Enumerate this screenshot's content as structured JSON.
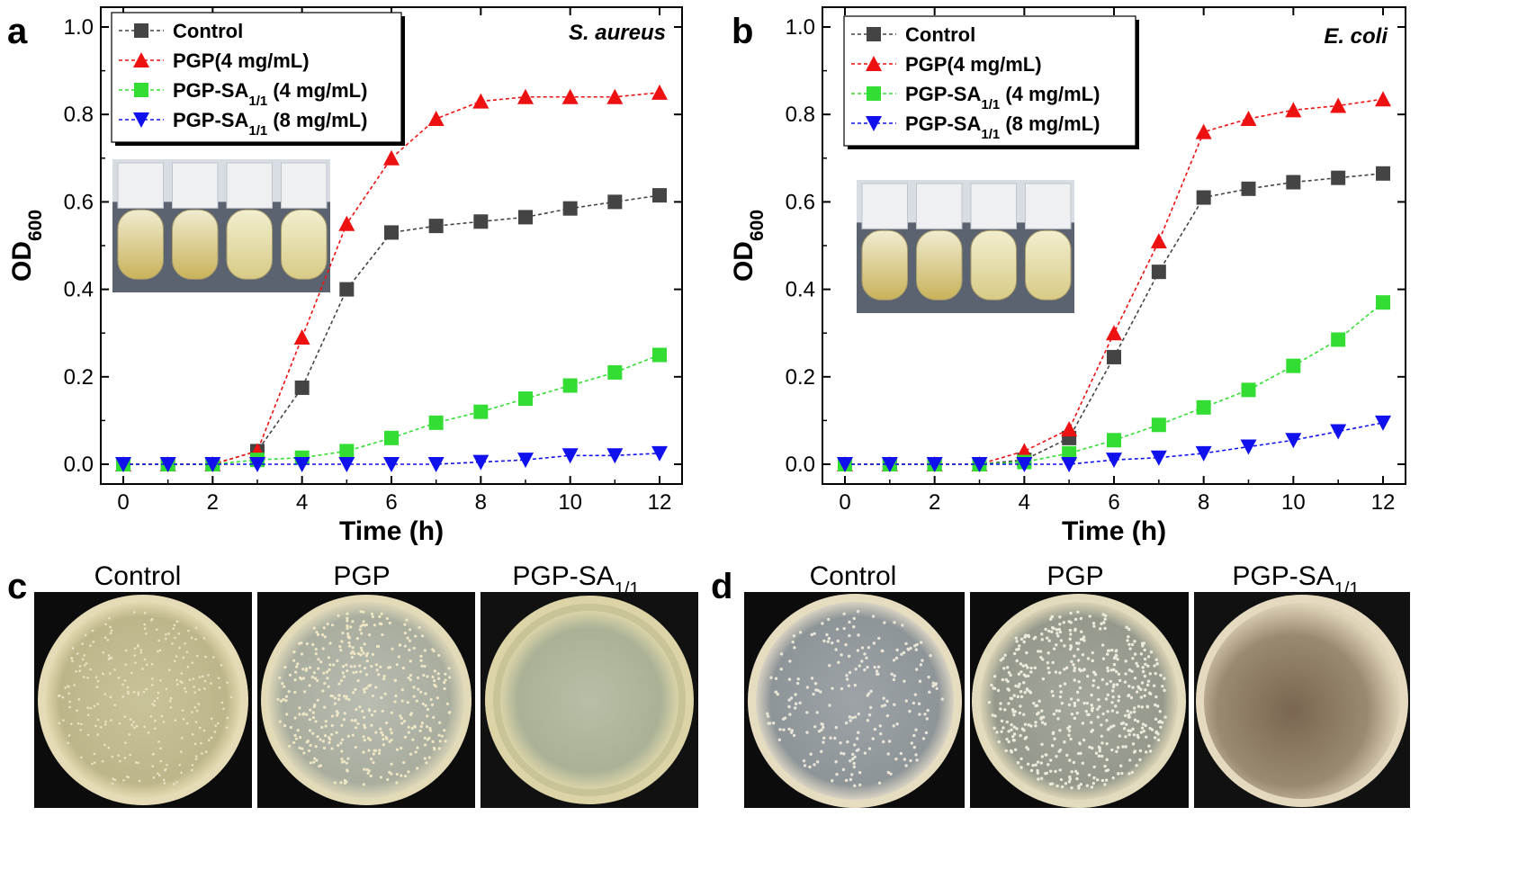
{
  "panels": {
    "a": "a",
    "b": "b",
    "c": "c",
    "d": "d"
  },
  "colors": {
    "control": "#444444",
    "pgp": "#ee1111",
    "pgp_sa_4": "#33dd33",
    "pgp_sa_8": "#1111ee"
  },
  "chart_data": [
    {
      "type": "line",
      "panel": "a",
      "species": "S. aureus",
      "xlabel": "Time (h)",
      "ylabel": "OD",
      "ylabel_sub": "600",
      "xlim": [
        0,
        12
      ],
      "ylim": [
        0,
        1.0
      ],
      "xticks": [
        0,
        2,
        4,
        6,
        8,
        10,
        12
      ],
      "yticks": [
        0.0,
        0.2,
        0.4,
        0.6,
        0.8,
        1.0
      ],
      "legend_position": "top-left",
      "x": [
        0,
        1,
        2,
        3,
        4,
        5,
        6,
        7,
        8,
        9,
        10,
        11,
        12
      ],
      "series": [
        {
          "key": "control",
          "name": "Control",
          "marker": "square",
          "values": [
            0,
            0,
            0,
            0.03,
            0.175,
            0.4,
            0.53,
            0.545,
            0.555,
            0.565,
            0.585,
            0.6,
            0.615
          ]
        },
        {
          "key": "pgp",
          "name": "PGP(4 mg/mL)",
          "marker": "triangle-up",
          "values": [
            0,
            0,
            0,
            0.03,
            0.29,
            0.55,
            0.7,
            0.79,
            0.83,
            0.84,
            0.84,
            0.84,
            0.85
          ]
        },
        {
          "key": "pgp_sa_4",
          "name": "PGP-SA",
          "name_sub": "1/1",
          "name_tail": " (4 mg/mL)",
          "marker": "square",
          "values": [
            0,
            0,
            0,
            0.01,
            0.015,
            0.03,
            0.06,
            0.095,
            0.12,
            0.15,
            0.18,
            0.21,
            0.25
          ]
        },
        {
          "key": "pgp_sa_8",
          "name": "PGP-SA",
          "name_sub": "1/1",
          "name_tail": " (8 mg/mL)",
          "marker": "triangle-down",
          "values": [
            0,
            0,
            0,
            0,
            0,
            0,
            0,
            0,
            0.005,
            0.01,
            0.02,
            0.02,
            0.025
          ]
        }
      ]
    },
    {
      "type": "line",
      "panel": "b",
      "species": "E. coli",
      "xlabel": "Time (h)",
      "ylabel": "OD",
      "ylabel_sub": "600",
      "xlim": [
        0,
        12
      ],
      "ylim": [
        0,
        1.0
      ],
      "xticks": [
        0,
        2,
        4,
        6,
        8,
        10,
        12
      ],
      "yticks": [
        0.0,
        0.2,
        0.4,
        0.6,
        0.8,
        1.0
      ],
      "legend_position": "top-left",
      "x": [
        0,
        1,
        2,
        3,
        4,
        5,
        6,
        7,
        8,
        9,
        10,
        11,
        12
      ],
      "series": [
        {
          "key": "control",
          "name": "Control",
          "marker": "square",
          "values": [
            0,
            0,
            0,
            0,
            0.01,
            0.06,
            0.245,
            0.44,
            0.61,
            0.63,
            0.645,
            0.655,
            0.665
          ]
        },
        {
          "key": "pgp",
          "name": "PGP(4 mg/mL)",
          "marker": "triangle-up",
          "values": [
            0,
            0,
            0,
            0,
            0.03,
            0.08,
            0.3,
            0.51,
            0.76,
            0.79,
            0.81,
            0.82,
            0.835
          ]
        },
        {
          "key": "pgp_sa_4",
          "name": "PGP-SA",
          "name_sub": "1/1",
          "name_tail": " (4 mg/mL)",
          "marker": "square",
          "values": [
            0,
            0,
            0,
            0,
            0.005,
            0.025,
            0.055,
            0.09,
            0.13,
            0.17,
            0.225,
            0.285,
            0.37
          ]
        },
        {
          "key": "pgp_sa_8",
          "name": "PGP-SA",
          "name_sub": "1/1",
          "name_tail": " (8 mg/mL)",
          "marker": "triangle-down",
          "values": [
            0,
            0,
            0,
            0,
            0,
            0,
            0.01,
            0.015,
            0.025,
            0.04,
            0.055,
            0.075,
            0.095
          ]
        }
      ]
    }
  ],
  "plates": {
    "c": [
      {
        "label": "Control"
      },
      {
        "label": "PGP"
      },
      {
        "label": "PGP-SA",
        "sub": "1/1"
      }
    ],
    "d": [
      {
        "label": "Control"
      },
      {
        "label": "PGP"
      },
      {
        "label": "PGP-SA",
        "sub": "1/1"
      }
    ]
  }
}
